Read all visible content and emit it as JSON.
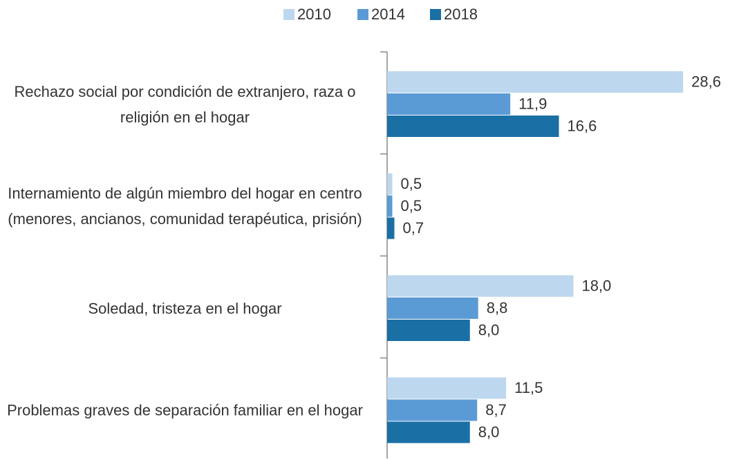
{
  "chart_data": {
    "type": "bar",
    "orientation": "horizontal",
    "categories": [
      "Rechazo social por condición de extranjero, raza o religión en el hogar",
      "Internamiento de algún miembro del hogar en centro (menores, ancianos, comunidad terapéutica, prisión)",
      "Soledad, tristeza en el hogar",
      "Problemas graves de separación familiar en el hogar"
    ],
    "series": [
      {
        "name": "2010",
        "color": "#bdd7ee",
        "values": [
          28.6,
          0.5,
          18.0,
          11.5
        ],
        "value_labels": [
          "28,6",
          "0,5",
          "18,0",
          "11,5"
        ]
      },
      {
        "name": "2014",
        "color": "#5b9bd5",
        "values": [
          11.9,
          0.5,
          8.8,
          8.7
        ],
        "value_labels": [
          "11,9",
          "0,5",
          "8,8",
          "8,7"
        ]
      },
      {
        "name": "2018",
        "color": "#1a6fa5",
        "values": [
          16.6,
          0.7,
          8.0,
          8.0
        ],
        "value_labels": [
          "16,6",
          "0,7",
          "8,0",
          "8,0"
        ]
      }
    ],
    "xlim": [
      0,
      33
    ],
    "legend": "top"
  }
}
